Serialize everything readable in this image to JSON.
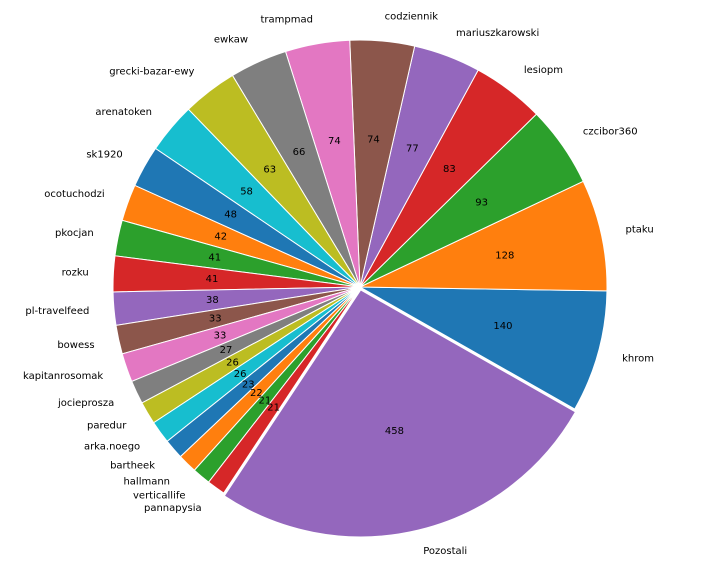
{
  "chart_data": {
    "type": "pie",
    "categories": [
      "khrom",
      "ptaku",
      "czcibor360",
      "lesiopm",
      "mariuszkarowski",
      "codziennik",
      "trampmad",
      "ewkaw",
      "grecki-bazar-ewy",
      "arenatoken",
      "sk1920",
      "ocotuchodzi",
      "pkocjan",
      "rozku",
      "pl-travelfeed",
      "bowess",
      "kapitanrosomak",
      "jocieprosza",
      "paredur",
      "arka.noego",
      "bartheek",
      "hallmann",
      "verticallife",
      "pannapysia",
      "Pozostali"
    ],
    "values": [
      140,
      128,
      93,
      83,
      77,
      74,
      74,
      66,
      63,
      58,
      48,
      42,
      41,
      41,
      38,
      33,
      33,
      27,
      26,
      26,
      23,
      22,
      21,
      21,
      458
    ],
    "colors": [
      "#1f77b4",
      "#ff7f0e",
      "#2ca02c",
      "#d62728",
      "#9467bd",
      "#8c564b",
      "#e377c2",
      "#7f7f7f",
      "#bcbd22",
      "#17becf"
    ]
  }
}
